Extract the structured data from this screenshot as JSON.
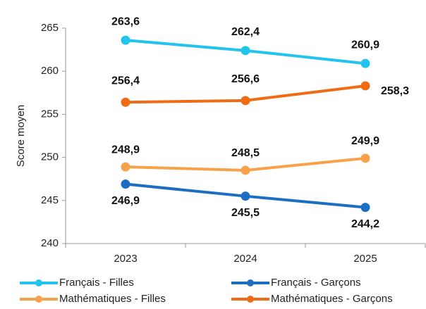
{
  "chart_data": {
    "type": "line",
    "y_label": "Score moyen",
    "categories": [
      "2023",
      "2024",
      "2025"
    ],
    "series": [
      {
        "name": "Français - Filles",
        "color": "#22c4ee",
        "values": [
          263.6,
          262.4,
          260.9
        ],
        "value_labels": [
          "263,6",
          "262,4",
          "260,9"
        ]
      },
      {
        "name": "Français - Garçons",
        "color": "#1b6ec2",
        "values": [
          246.9,
          245.5,
          244.2
        ],
        "value_labels": [
          "246,9",
          "245,5",
          "244,2"
        ]
      },
      {
        "name": "Mathématiques - Filles",
        "color": "#f7a24b",
        "values": [
          248.9,
          248.5,
          249.9
        ],
        "value_labels": [
          "248,9",
          "248,5",
          "249,9"
        ]
      },
      {
        "name": "Mathématiques - Garçons",
        "color": "#f06b14",
        "values": [
          256.4,
          256.6,
          258.3
        ],
        "value_labels": [
          "256,4",
          "256,6",
          "258,3"
        ]
      }
    ],
    "ylim": [
      240,
      265
    ],
    "yticks": [
      240,
      245,
      250,
      255,
      260,
      265
    ]
  }
}
